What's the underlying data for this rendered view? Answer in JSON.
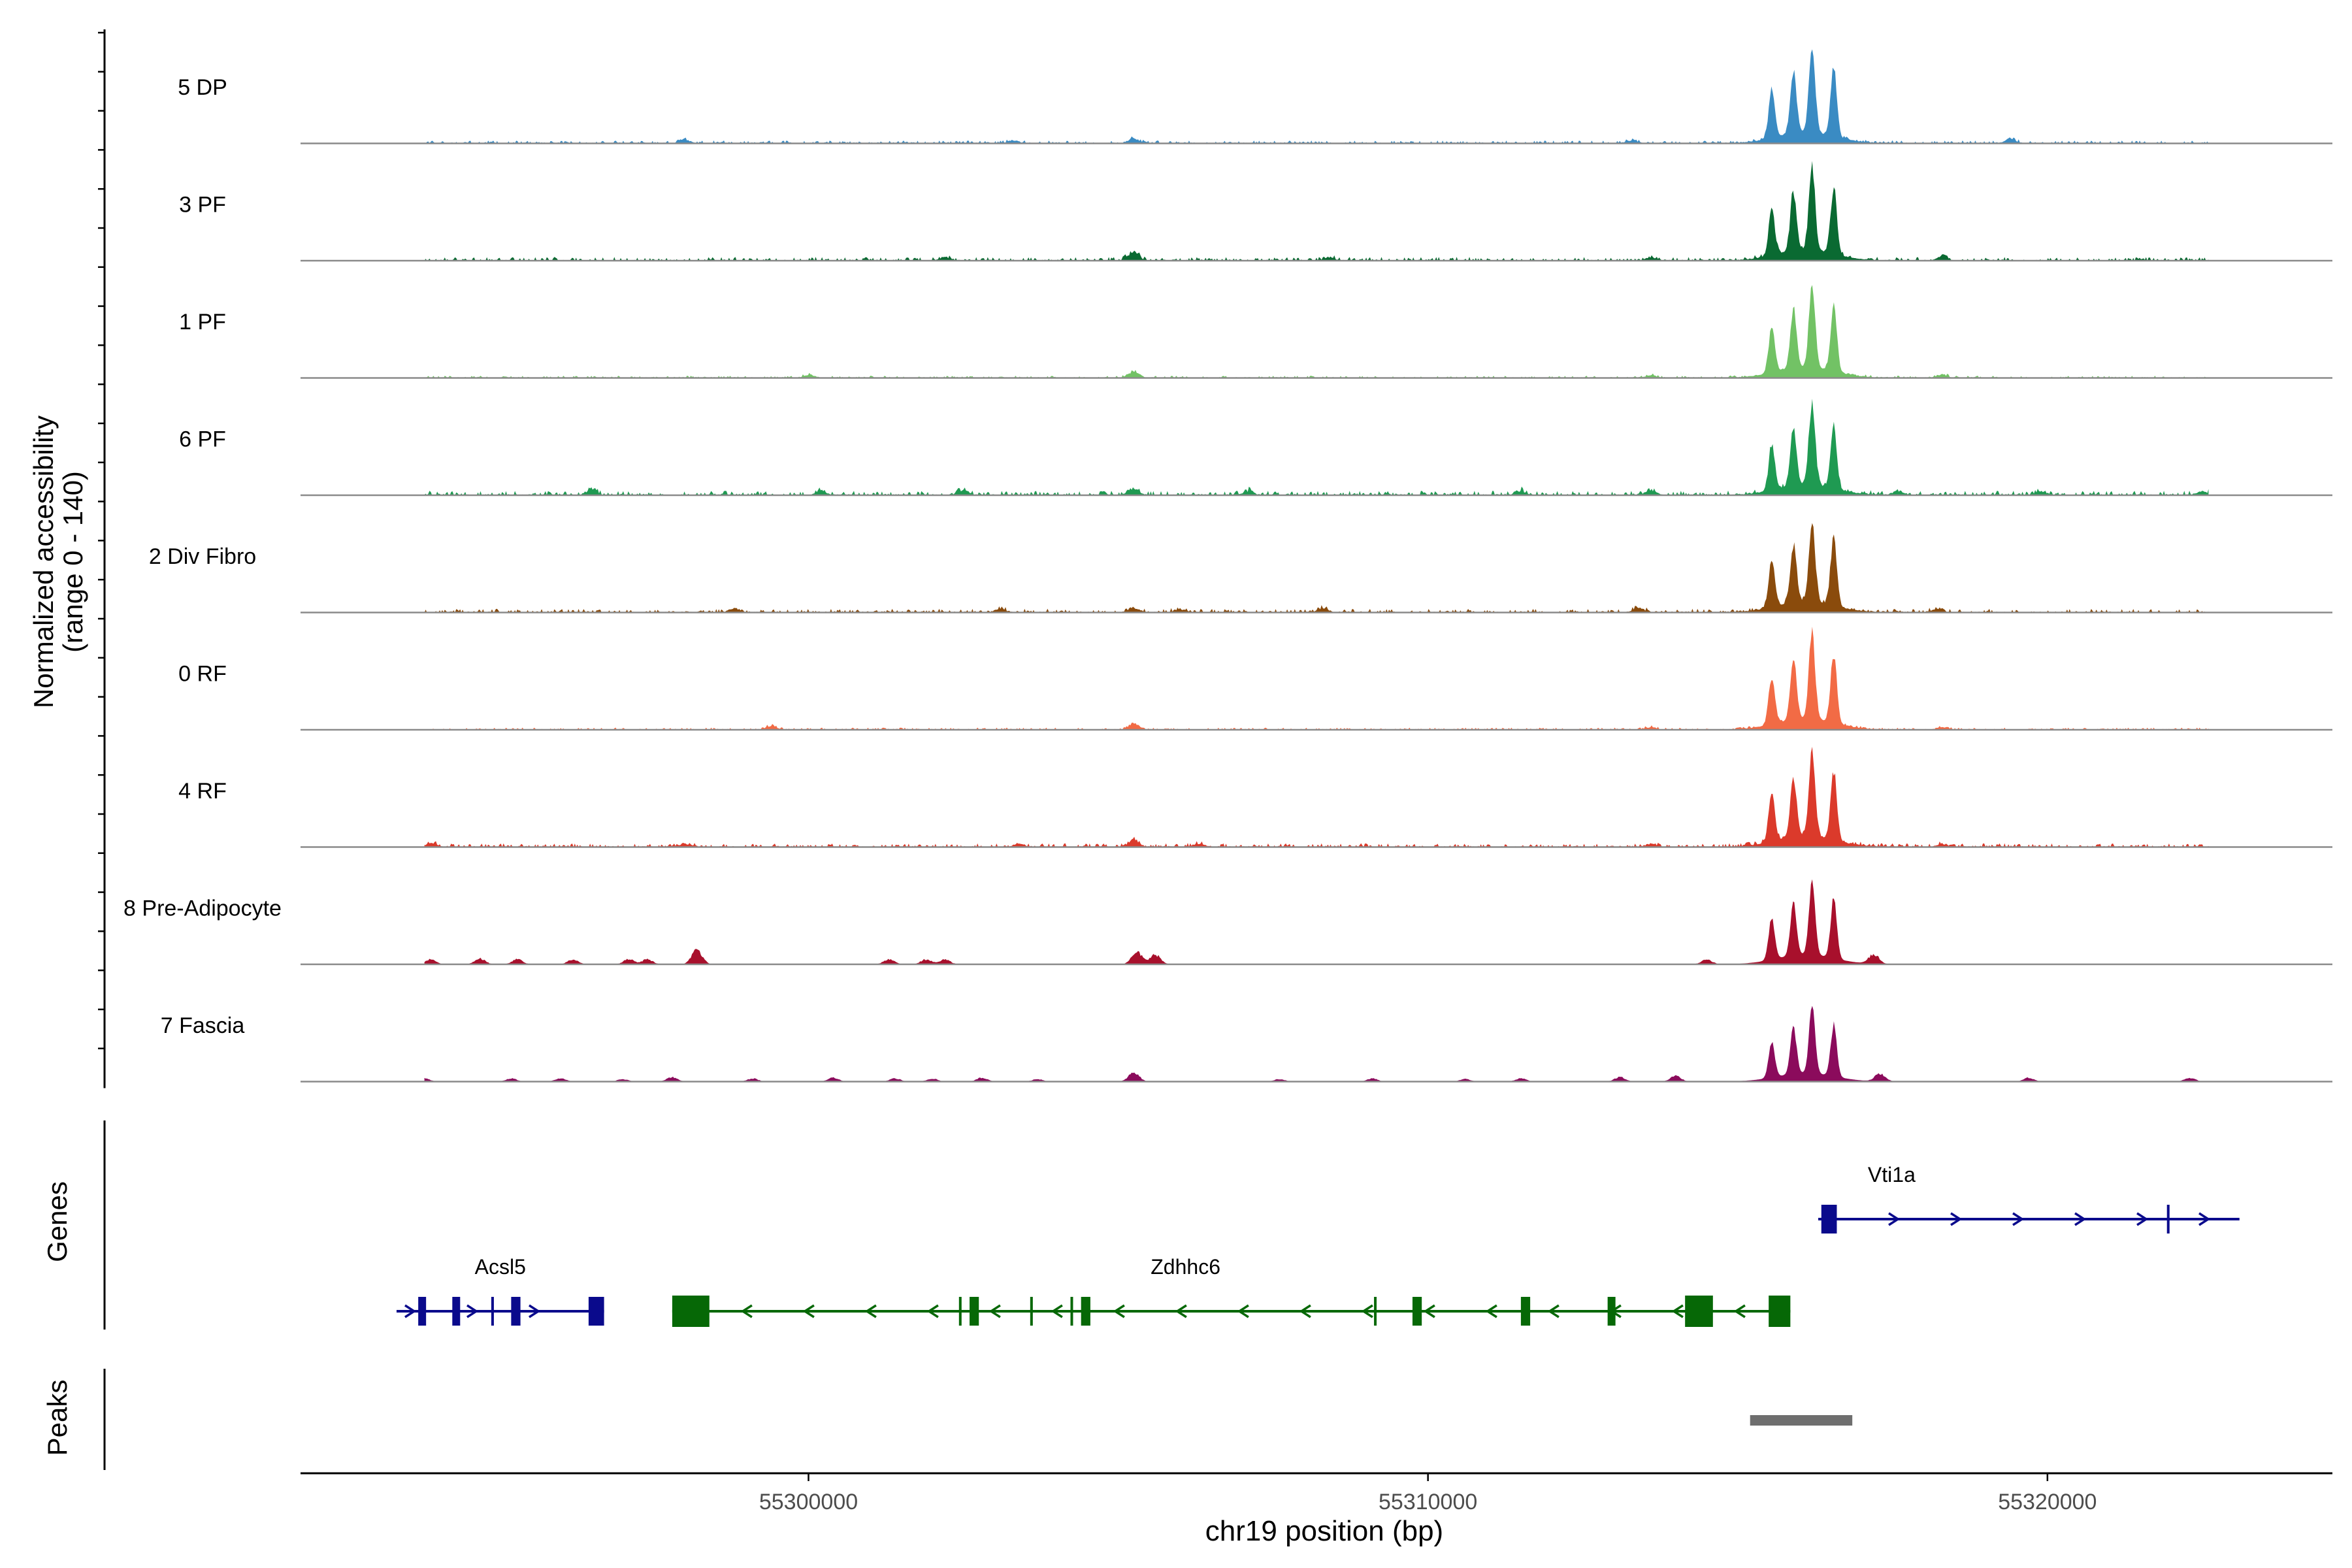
{
  "chart_data": {
    "type": "area",
    "title": "",
    "ylabel": [
      "Normalized accessibility",
      "(range 0 - 140)"
    ],
    "y_range": [
      0,
      140
    ],
    "xlabel": "chr19 position (bp)",
    "xlim": [
      55291800,
      55324600
    ],
    "xticks": [
      55300000,
      55310000,
      55320000
    ],
    "xtick_labels": [
      "55300000",
      "55310000",
      "55320000"
    ],
    "track_labels": {
      "genes": "Genes",
      "peaks": "Peaks"
    },
    "series": [
      {
        "name": "5 DP",
        "color": "#3A8BC3",
        "peak_height": 125,
        "background": 4,
        "bumps": [
          [
            55305250,
            8
          ],
          [
            55298000,
            6
          ],
          [
            55313300,
            5
          ],
          [
            55319400,
            7
          ],
          [
            55303300,
            4
          ]
        ]
      },
      {
        "name": "3 PF",
        "color": "#0A6A32",
        "peak_height": 120,
        "background": 5,
        "bumps": [
          [
            55305250,
            14
          ],
          [
            55302200,
            5
          ],
          [
            55308400,
            5
          ],
          [
            55313600,
            5
          ],
          [
            55318300,
            6
          ]
        ]
      },
      {
        "name": "1 PF",
        "color": "#72C265",
        "peak_height": 120,
        "background": 3,
        "bumps": [
          [
            55305250,
            10
          ],
          [
            55313600,
            4
          ],
          [
            55300000,
            4
          ],
          [
            55318300,
            5
          ]
        ]
      },
      {
        "name": "6 PF",
        "color": "#1F9A52",
        "peak_height": 118,
        "background": 6,
        "bumps": [
          [
            55305250,
            10
          ],
          [
            55296500,
            7
          ],
          [
            55300200,
            7
          ],
          [
            55302500,
            8
          ],
          [
            55307100,
            6
          ],
          [
            55311500,
            6
          ],
          [
            55313600,
            8
          ],
          [
            55317600,
            6
          ],
          [
            55319900,
            6
          ],
          [
            55322500,
            6
          ]
        ]
      },
      {
        "name": "2 Div Fibro",
        "color": "#8A4B0C",
        "peak_height": 122,
        "background": 5,
        "bumps": [
          [
            55305250,
            7
          ],
          [
            55298800,
            6
          ],
          [
            55303100,
            5
          ],
          [
            55306000,
            5
          ],
          [
            55308300,
            6
          ],
          [
            55313400,
            7
          ],
          [
            55318200,
            5
          ]
        ]
      },
      {
        "name": "0 RF",
        "color": "#F26B45",
        "peak_height": 125,
        "background": 3,
        "bumps": [
          [
            55305250,
            10
          ],
          [
            55299400,
            6
          ],
          [
            55313600,
            4
          ],
          [
            55318300,
            4
          ]
        ]
      },
      {
        "name": "4 RF",
        "color": "#DB3A2B",
        "peak_height": 126,
        "background": 5,
        "bumps": [
          [
            55305250,
            10
          ],
          [
            55293900,
            6
          ],
          [
            55298000,
            5
          ],
          [
            55303400,
            5
          ],
          [
            55306300,
            5
          ],
          [
            55313600,
            5
          ],
          [
            55318300,
            5
          ]
        ]
      },
      {
        "name": "8 Pre-Adipocyte",
        "color": "#A8102C",
        "peak_height": 110,
        "background": 0,
        "bumps": [
          [
            55293900,
            8
          ],
          [
            55294700,
            9
          ],
          [
            55295300,
            8
          ],
          [
            55296200,
            8
          ],
          [
            55297100,
            8
          ],
          [
            55297400,
            8
          ],
          [
            55298200,
            22
          ],
          [
            55301300,
            8
          ],
          [
            55301900,
            8
          ],
          [
            55302200,
            8
          ],
          [
            55305300,
            20
          ],
          [
            55305600,
            15
          ],
          [
            55314500,
            8
          ],
          [
            55317200,
            15
          ]
        ]
      },
      {
        "name": "7 Fascia",
        "color": "#8B0B5C",
        "peak_height": 95,
        "background": 0,
        "bumps": [
          [
            55293800,
            5
          ],
          [
            55295200,
            5
          ],
          [
            55296000,
            5
          ],
          [
            55297000,
            4
          ],
          [
            55297800,
            7
          ],
          [
            55299100,
            5
          ],
          [
            55300400,
            6
          ],
          [
            55301400,
            5
          ],
          [
            55302000,
            5
          ],
          [
            55302800,
            6
          ],
          [
            55303700,
            4
          ],
          [
            55305250,
            15
          ],
          [
            55307600,
            4
          ],
          [
            55309100,
            5
          ],
          [
            55310600,
            4
          ],
          [
            55311500,
            5
          ],
          [
            55313100,
            7
          ],
          [
            55314000,
            9
          ],
          [
            55317300,
            12
          ],
          [
            55319700,
            6
          ],
          [
            55322300,
            6
          ]
        ]
      }
    ],
    "main_peak": {
      "start": 55315200,
      "end": 55317000,
      "center_lobes": [
        55315550,
        55315900,
        55316200,
        55316550
      ]
    },
    "genes": [
      {
        "name": "Acsl5",
        "strand": "+",
        "start": 55293350,
        "end": 55296700,
        "color": "#0A0A8C",
        "row": 2,
        "exons": [
          [
            55293700,
            55293800
          ],
          [
            55294250,
            55294350
          ],
          [
            55295200,
            55295350
          ],
          [
            55296450,
            55296700
          ]
        ],
        "ticks": [
          55294900
        ]
      },
      {
        "name": "Zdhhc6",
        "strand": "-",
        "start": 55297800,
        "end": 55315850,
        "color": "#066806",
        "row": 2,
        "exons": [
          [
            55297800,
            55298400
          ],
          [
            55302600,
            55302750
          ],
          [
            55304400,
            55304550
          ],
          [
            55309750,
            55309900
          ],
          [
            55311500,
            55311650
          ],
          [
            55312900,
            55313000
          ],
          [
            55314150,
            55314600
          ],
          [
            55315500,
            55315850
          ]
        ],
        "ticks": [
          55302450,
          55303600,
          55304250,
          55309150
        ]
      },
      {
        "name": "Vti1a",
        "strand": "+",
        "start": 55316300,
        "end": 55323100,
        "color": "#0A0A8C",
        "row": 1,
        "exons": [
          [
            55316350,
            55316600
          ]
        ],
        "ticks": [
          55321950
        ]
      }
    ],
    "peaks": [
      [
        55315200,
        55316850
      ]
    ]
  }
}
